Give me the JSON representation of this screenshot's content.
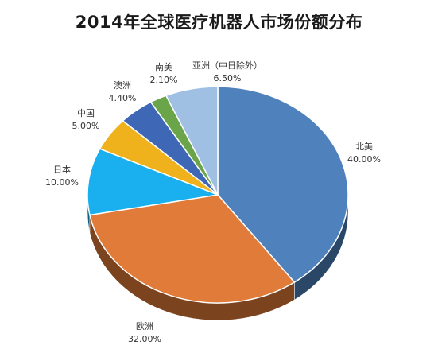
{
  "chart_data": {
    "type": "pie",
    "title": "2014年全球医疗机器人市场份额分布",
    "slices": [
      {
        "name": "北美",
        "value": 40.0,
        "label": "40.00%",
        "color": "#4f81bd"
      },
      {
        "name": "欧洲",
        "value": 32.0,
        "label": "32.00%",
        "color": "#e07b39"
      },
      {
        "name": "日本",
        "value": 10.0,
        "label": "10.00%",
        "color": "#1ab0ef"
      },
      {
        "name": "中国",
        "value": 5.0,
        "label": "5.00%",
        "color": "#f0b21c"
      },
      {
        "name": "澳洲",
        "value": 4.4,
        "label": "4.40%",
        "color": "#3e67b5"
      },
      {
        "name": "南美",
        "value": 2.1,
        "label": "2.10%",
        "color": "#6aa54a"
      },
      {
        "name": "亚洲（中日除外）",
        "value": 6.5,
        "label": "6.50%",
        "color": "#9fc0e3"
      }
    ]
  }
}
